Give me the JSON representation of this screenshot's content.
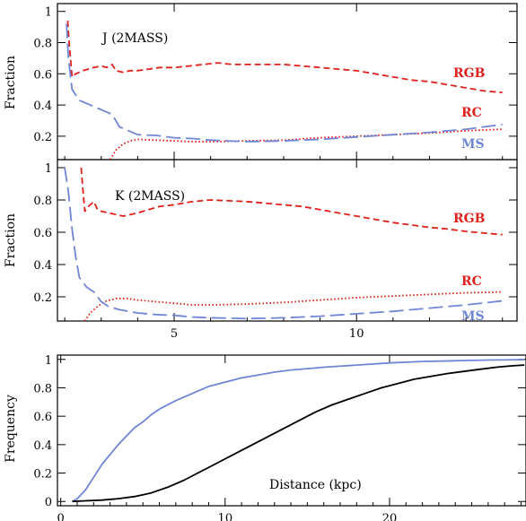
{
  "chart_data": [
    {
      "type": "line",
      "panel_label": "J (2MASS)",
      "xlabel": "",
      "ylabel": "Fraction",
      "xlim": [
        1.8,
        14.4
      ],
      "ylim": [
        0.05,
        1.05
      ],
      "xticks": [
        5,
        10
      ],
      "yticks": [
        0.2,
        0.4,
        0.6,
        0.8,
        1
      ],
      "ytick_labels": [
        "0.2",
        "0.4",
        "0.6",
        "0.8",
        "1"
      ],
      "show_xtick_labels": false,
      "colors": {
        "RGB": "#e0211b",
        "RC": "#e0211b",
        "MS": "#6f86d6"
      },
      "series": [
        {
          "name": "RGB",
          "style": "short-dash",
          "points": [
            [
              2.08,
              0.94
            ],
            [
              2.12,
              0.8
            ],
            [
              2.2,
              0.58
            ],
            [
              2.3,
              0.6
            ],
            [
              2.5,
              0.62
            ],
            [
              2.8,
              0.64
            ],
            [
              3.0,
              0.65
            ],
            [
              3.15,
              0.64
            ],
            [
              3.3,
              0.66
            ],
            [
              3.4,
              0.62
            ],
            [
              3.6,
              0.61
            ],
            [
              3.8,
              0.62
            ],
            [
              4.0,
              0.62
            ],
            [
              4.3,
              0.63
            ],
            [
              4.6,
              0.64
            ],
            [
              5.0,
              0.64
            ],
            [
              5.4,
              0.65
            ],
            [
              5.8,
              0.66
            ],
            [
              6.2,
              0.67
            ],
            [
              6.6,
              0.66
            ],
            [
              7.0,
              0.66
            ],
            [
              7.5,
              0.66
            ],
            [
              8.0,
              0.66
            ],
            [
              8.5,
              0.65
            ],
            [
              9.0,
              0.64
            ],
            [
              9.5,
              0.63
            ],
            [
              10.0,
              0.62
            ],
            [
              10.5,
              0.6
            ],
            [
              11.0,
              0.58
            ],
            [
              11.5,
              0.56
            ],
            [
              12.0,
              0.55
            ],
            [
              12.5,
              0.53
            ],
            [
              13.0,
              0.51
            ],
            [
              13.5,
              0.49
            ],
            [
              14.0,
              0.48
            ]
          ]
        },
        {
          "name": "RC",
          "style": "dotted",
          "points": [
            [
              3.25,
              0.05
            ],
            [
              3.4,
              0.11
            ],
            [
              3.6,
              0.15
            ],
            [
              3.8,
              0.17
            ],
            [
              4.0,
              0.18
            ],
            [
              4.5,
              0.175
            ],
            [
              5.0,
              0.17
            ],
            [
              5.5,
              0.165
            ],
            [
              6.0,
              0.165
            ],
            [
              7.0,
              0.17
            ],
            [
              8.0,
              0.175
            ],
            [
              9.0,
              0.19
            ],
            [
              10.0,
              0.2
            ],
            [
              11.0,
              0.21
            ],
            [
              12.0,
              0.22
            ],
            [
              13.0,
              0.235
            ],
            [
              14.0,
              0.245
            ]
          ]
        },
        {
          "name": "MS",
          "style": "long-dash",
          "points": [
            [
              2.05,
              0.92
            ],
            [
              2.1,
              0.7
            ],
            [
              2.2,
              0.5
            ],
            [
              2.4,
              0.43
            ],
            [
              2.7,
              0.4
            ],
            [
              3.0,
              0.37
            ],
            [
              3.3,
              0.34
            ],
            [
              3.5,
              0.26
            ],
            [
              3.8,
              0.23
            ],
            [
              4.0,
              0.21
            ],
            [
              4.5,
              0.205
            ],
            [
              5.0,
              0.19
            ],
            [
              5.5,
              0.185
            ],
            [
              6.0,
              0.175
            ],
            [
              7.0,
              0.165
            ],
            [
              8.0,
              0.17
            ],
            [
              9.0,
              0.18
            ],
            [
              10.0,
              0.195
            ],
            [
              11.0,
              0.21
            ],
            [
              12.0,
              0.225
            ],
            [
              13.0,
              0.245
            ],
            [
              14.0,
              0.275
            ]
          ]
        }
      ]
    },
    {
      "type": "line",
      "panel_label": "K (2MASS)",
      "xlabel": "",
      "ylabel": "Fraction",
      "xlim": [
        1.8,
        14.4
      ],
      "ylim": [
        0.05,
        1.05
      ],
      "xticks": [
        5,
        10
      ],
      "xtick_labels": [
        "5",
        "10"
      ],
      "yticks": [
        0.2,
        0.4,
        0.6,
        0.8,
        1
      ],
      "ytick_labels": [
        "0.2",
        "0.4",
        "0.6",
        "0.8",
        "1"
      ],
      "show_xtick_labels": true,
      "colors": {
        "RGB": "#e0211b",
        "RC": "#e0211b",
        "MS": "#6f86d6"
      },
      "series": [
        {
          "name": "RGB",
          "style": "short-dash",
          "points": [
            [
              2.45,
              1.0
            ],
            [
              2.5,
              0.86
            ],
            [
              2.55,
              0.73
            ],
            [
              2.65,
              0.76
            ],
            [
              2.8,
              0.79
            ],
            [
              2.9,
              0.74
            ],
            [
              3.0,
              0.73
            ],
            [
              3.2,
              0.72
            ],
            [
              3.4,
              0.71
            ],
            [
              3.6,
              0.7
            ],
            [
              3.8,
              0.71
            ],
            [
              4.0,
              0.72
            ],
            [
              4.3,
              0.74
            ],
            [
              4.6,
              0.76
            ],
            [
              5.0,
              0.77
            ],
            [
              5.5,
              0.79
            ],
            [
              6.0,
              0.8
            ],
            [
              6.5,
              0.795
            ],
            [
              7.0,
              0.79
            ],
            [
              7.5,
              0.78
            ],
            [
              8.0,
              0.77
            ],
            [
              8.5,
              0.76
            ],
            [
              9.0,
              0.74
            ],
            [
              9.5,
              0.72
            ],
            [
              10.0,
              0.7
            ],
            [
              10.5,
              0.68
            ],
            [
              11.0,
              0.66
            ],
            [
              11.5,
              0.645
            ],
            [
              12.0,
              0.63
            ],
            [
              12.5,
              0.62
            ],
            [
              13.0,
              0.605
            ],
            [
              13.5,
              0.595
            ],
            [
              14.0,
              0.585
            ]
          ]
        },
        {
          "name": "RC",
          "style": "dotted",
          "points": [
            [
              2.55,
              0.05
            ],
            [
              2.7,
              0.1
            ],
            [
              2.9,
              0.14
            ],
            [
              3.1,
              0.17
            ],
            [
              3.4,
              0.19
            ],
            [
              3.7,
              0.19
            ],
            [
              4.0,
              0.18
            ],
            [
              4.5,
              0.17
            ],
            [
              5.0,
              0.16
            ],
            [
              5.5,
              0.15
            ],
            [
              6.0,
              0.15
            ],
            [
              7.0,
              0.155
            ],
            [
              8.0,
              0.165
            ],
            [
              9.0,
              0.18
            ],
            [
              10.0,
              0.195
            ],
            [
              11.0,
              0.205
            ],
            [
              12.0,
              0.215
            ],
            [
              13.0,
              0.225
            ],
            [
              14.0,
              0.23
            ]
          ]
        },
        {
          "name": "MS",
          "style": "long-dash",
          "points": [
            [
              2.0,
              1.0
            ],
            [
              2.1,
              0.85
            ],
            [
              2.2,
              0.62
            ],
            [
              2.3,
              0.45
            ],
            [
              2.4,
              0.32
            ],
            [
              2.6,
              0.26
            ],
            [
              2.8,
              0.23
            ],
            [
              3.0,
              0.17
            ],
            [
              3.2,
              0.14
            ],
            [
              3.5,
              0.12
            ],
            [
              4.0,
              0.1
            ],
            [
              4.5,
              0.09
            ],
            [
              5.0,
              0.085
            ],
            [
              5.5,
              0.075
            ],
            [
              6.0,
              0.07
            ],
            [
              7.0,
              0.065
            ],
            [
              8.0,
              0.07
            ],
            [
              9.0,
              0.08
            ],
            [
              10.0,
              0.095
            ],
            [
              11.0,
              0.11
            ],
            [
              12.0,
              0.13
            ],
            [
              13.0,
              0.15
            ],
            [
              14.0,
              0.175
            ]
          ]
        }
      ]
    },
    {
      "type": "line",
      "panel_label": "",
      "xlabel": "Distance (kpc)",
      "ylabel": "Frequency",
      "xlim": [
        -0.2,
        28.3
      ],
      "ylim": [
        -0.03,
        1.03
      ],
      "xticks": [
        0,
        10,
        20
      ],
      "xtick_labels": [
        "0",
        "10",
        "20"
      ],
      "yticks": [
        0,
        0.2,
        0.4,
        0.6,
        0.8,
        1
      ],
      "ytick_labels": [
        "0",
        "0.2",
        "0.4",
        "0.6",
        "0.8",
        "1"
      ],
      "show_xtick_labels": true,
      "colors": {
        "cum-blue": "#6f86d6",
        "cum-black": "#000000"
      },
      "series": [
        {
          "name": "",
          "key": "cum-blue",
          "style": "solid",
          "points": [
            [
              0.7,
              0.0
            ],
            [
              1.0,
              0.02
            ],
            [
              1.5,
              0.08
            ],
            [
              2.0,
              0.17
            ],
            [
              2.5,
              0.26
            ],
            [
              3.0,
              0.33
            ],
            [
              3.5,
              0.4
            ],
            [
              4.0,
              0.46
            ],
            [
              4.5,
              0.52
            ],
            [
              5.0,
              0.56
            ],
            [
              5.5,
              0.61
            ],
            [
              6.0,
              0.65
            ],
            [
              7.0,
              0.71
            ],
            [
              8.0,
              0.76
            ],
            [
              9.0,
              0.81
            ],
            [
              10.0,
              0.84
            ],
            [
              11.0,
              0.87
            ],
            [
              12.0,
              0.89
            ],
            [
              13.0,
              0.91
            ],
            [
              14.0,
              0.925
            ],
            [
              15.0,
              0.935
            ],
            [
              16.0,
              0.945
            ],
            [
              18.0,
              0.96
            ],
            [
              20.0,
              0.975
            ],
            [
              22.0,
              0.985
            ],
            [
              24.0,
              0.99
            ],
            [
              26.0,
              0.995
            ],
            [
              28.2,
              0.998
            ]
          ]
        },
        {
          "name": "",
          "key": "cum-black",
          "style": "solid",
          "points": [
            [
              0.7,
              0.0
            ],
            [
              1.5,
              0.005
            ],
            [
              2.5,
              0.01
            ],
            [
              3.5,
              0.02
            ],
            [
              4.5,
              0.035
            ],
            [
              5.5,
              0.06
            ],
            [
              6.5,
              0.1
            ],
            [
              7.5,
              0.15
            ],
            [
              8.5,
              0.21
            ],
            [
              9.5,
              0.27
            ],
            [
              10.5,
              0.33
            ],
            [
              11.5,
              0.39
            ],
            [
              12.5,
              0.45
            ],
            [
              13.5,
              0.51
            ],
            [
              14.5,
              0.57
            ],
            [
              15.5,
              0.63
            ],
            [
              16.5,
              0.68
            ],
            [
              17.5,
              0.72
            ],
            [
              18.5,
              0.76
            ],
            [
              19.5,
              0.8
            ],
            [
              20.5,
              0.83
            ],
            [
              21.5,
              0.86
            ],
            [
              22.5,
              0.88
            ],
            [
              23.5,
              0.9
            ],
            [
              24.5,
              0.915
            ],
            [
              25.5,
              0.93
            ],
            [
              26.5,
              0.945
            ],
            [
              27.5,
              0.955
            ],
            [
              28.2,
              0.96
            ]
          ]
        }
      ]
    }
  ],
  "labels": {
    "top": {
      "RGB": "RGB",
      "RC": "RC",
      "MS": "MS"
    },
    "middle": {
      "RGB": "RGB",
      "RC": "RC",
      "MS": "MS"
    }
  }
}
